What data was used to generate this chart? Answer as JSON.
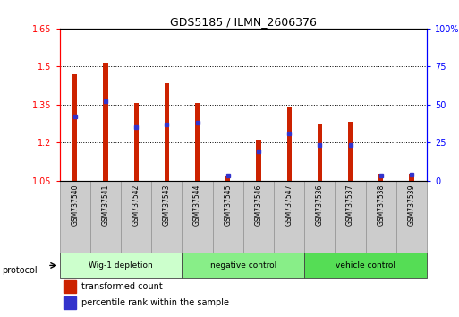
{
  "title": "GDS5185 / ILMN_2606376",
  "samples": [
    "GSM737540",
    "GSM737541",
    "GSM737542",
    "GSM737543",
    "GSM737544",
    "GSM737545",
    "GSM737546",
    "GSM737547",
    "GSM737536",
    "GSM737537",
    "GSM737538",
    "GSM737539"
  ],
  "transformed_count": [
    1.47,
    1.515,
    1.355,
    1.435,
    1.355,
    1.065,
    1.21,
    1.34,
    1.275,
    1.28,
    1.075,
    1.075
  ],
  "percentile_rank": [
    42,
    52,
    35,
    37,
    38,
    3,
    19,
    31,
    23,
    23,
    3,
    4
  ],
  "groups": [
    {
      "label": "Wig-1 depletion",
      "start": 0,
      "end": 4,
      "color": "#ccffcc"
    },
    {
      "label": "negative control",
      "start": 4,
      "end": 8,
      "color": "#88ee88"
    },
    {
      "label": "vehicle control",
      "start": 8,
      "end": 12,
      "color": "#55dd55"
    }
  ],
  "ylim_left": [
    1.05,
    1.65
  ],
  "ylim_right": [
    0,
    100
  ],
  "yticks_left": [
    1.05,
    1.2,
    1.35,
    1.5,
    1.65
  ],
  "yticks_right": [
    0,
    25,
    50,
    75,
    100
  ],
  "ytick_labels_right": [
    "0",
    "25",
    "50",
    "75",
    "100%"
  ],
  "bar_color": "#cc2200",
  "dot_color": "#3333cc",
  "bar_width": 0.15,
  "background_color": "#ffffff",
  "protocol_label": "protocol",
  "legend_red": "transformed count",
  "legend_blue": "percentile rank within the sample",
  "sample_box_color": "#cccccc",
  "sample_box_border": "#999999"
}
